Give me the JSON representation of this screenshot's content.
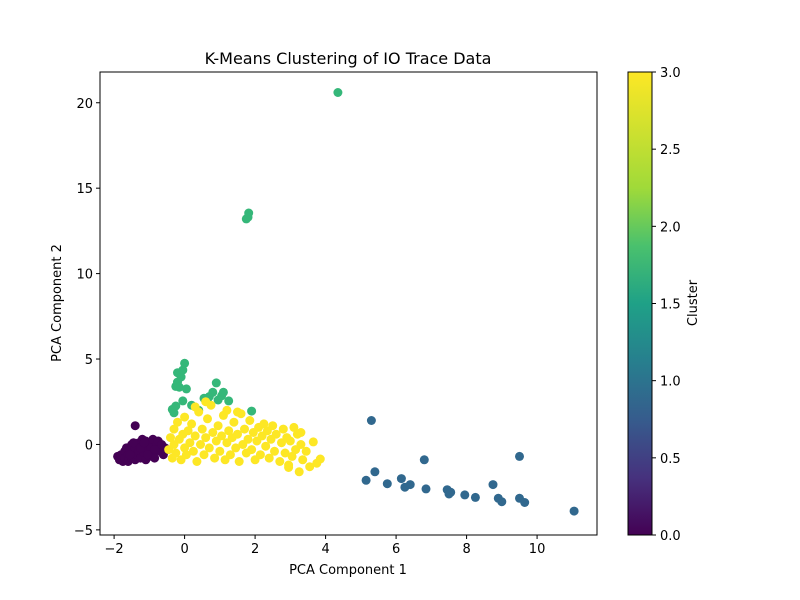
{
  "chart_data": {
    "type": "scatter",
    "title": "K-Means Clustering of IO Trace Data",
    "xlabel": "PCA Component 1",
    "ylabel": "PCA Component 2",
    "xlim": [
      -2.4,
      11.7
    ],
    "ylim": [
      -5.3,
      21.8
    ],
    "xticks": [
      -2,
      0,
      2,
      4,
      6,
      8,
      10
    ],
    "yticks": [
      -5,
      0,
      5,
      10,
      15,
      20
    ],
    "grid": false,
    "colorbar": {
      "label": "Cluster",
      "range": [
        0.0,
        3.0
      ],
      "ticks": [
        "0.0",
        "0.5",
        "1.0",
        "1.5",
        "2.0",
        "2.5",
        "3.0"
      ],
      "colormap": [
        "#440154",
        "#3b528b",
        "#21918c",
        "#5ec962",
        "#fde725"
      ]
    },
    "series": [
      {
        "cluster": 0,
        "color": "#440154",
        "points": [
          [
            -1.9,
            -0.7
          ],
          [
            -1.85,
            -0.9
          ],
          [
            -1.8,
            -0.6
          ],
          [
            -1.75,
            -1.0
          ],
          [
            -1.7,
            -0.4
          ],
          [
            -1.7,
            -0.8
          ],
          [
            -1.65,
            -0.2
          ],
          [
            -1.6,
            -0.6
          ],
          [
            -1.6,
            -1.0
          ],
          [
            -1.55,
            -0.3
          ],
          [
            -1.5,
            0.0
          ],
          [
            -1.5,
            -0.8
          ],
          [
            -1.45,
            -0.5
          ],
          [
            -1.4,
            1.1
          ],
          [
            -1.4,
            -0.2
          ],
          [
            -1.4,
            -0.9
          ],
          [
            -1.35,
            -0.6
          ],
          [
            -1.3,
            0.1
          ],
          [
            -1.3,
            -0.4
          ],
          [
            -1.25,
            -0.8
          ],
          [
            -1.2,
            -0.1
          ],
          [
            -1.2,
            0.3
          ],
          [
            -1.15,
            -0.5
          ],
          [
            -1.1,
            -0.9
          ],
          [
            -1.1,
            0.2
          ],
          [
            -1.05,
            -0.3
          ],
          [
            -1.0,
            0.0
          ],
          [
            -1.0,
            -0.7
          ],
          [
            -0.95,
            -0.2
          ],
          [
            -0.9,
            0.3
          ],
          [
            -0.9,
            -0.5
          ],
          [
            -0.85,
            -0.8
          ],
          [
            -0.8,
            -0.1
          ],
          [
            -0.75,
            0.2
          ],
          [
            -0.7,
            -0.4
          ],
          [
            -0.65,
            0.0
          ],
          [
            -0.6,
            -0.6
          ],
          [
            -0.55,
            -0.2
          ],
          [
            -0.5,
            -0.3
          ],
          [
            -1.55,
            -0.6
          ],
          [
            -1.25,
            -0.2
          ],
          [
            -1.05,
            -0.6
          ],
          [
            -0.85,
            -0.3
          ],
          [
            -1.45,
            0.1
          ],
          [
            -1.15,
            0.1
          ]
        ]
      },
      {
        "cluster": 1,
        "color": "#31688e",
        "points": [
          [
            5.3,
            1.4
          ],
          [
            5.15,
            -2.1
          ],
          [
            5.4,
            -1.6
          ],
          [
            5.75,
            -2.3
          ],
          [
            6.15,
            -2.0
          ],
          [
            6.25,
            -2.5
          ],
          [
            6.4,
            -2.35
          ],
          [
            6.8,
            -0.9
          ],
          [
            6.85,
            -2.6
          ],
          [
            7.45,
            -2.65
          ],
          [
            7.5,
            -2.9
          ],
          [
            7.55,
            -2.8
          ],
          [
            7.95,
            -2.95
          ],
          [
            8.25,
            -3.1
          ],
          [
            8.75,
            -2.35
          ],
          [
            8.9,
            -3.15
          ],
          [
            9.0,
            -3.35
          ],
          [
            9.5,
            -0.7
          ],
          [
            9.5,
            -3.15
          ],
          [
            9.65,
            -3.4
          ],
          [
            11.05,
            -3.9
          ]
        ]
      },
      {
        "cluster": 2,
        "color": "#35b779",
        "points": [
          [
            -0.35,
            2.05
          ],
          [
            -0.3,
            1.85
          ],
          [
            -0.25,
            2.25
          ],
          [
            -0.25,
            3.4
          ],
          [
            -0.2,
            3.65
          ],
          [
            -0.2,
            4.2
          ],
          [
            -0.15,
            3.35
          ],
          [
            -0.1,
            3.95
          ],
          [
            -0.05,
            4.35
          ],
          [
            0.0,
            4.75
          ],
          [
            -0.05,
            2.55
          ],
          [
            0.05,
            3.25
          ],
          [
            0.2,
            2.3
          ],
          [
            0.4,
            2.0
          ],
          [
            0.55,
            2.7
          ],
          [
            0.65,
            2.5
          ],
          [
            0.7,
            2.8
          ],
          [
            0.8,
            3.05
          ],
          [
            0.9,
            3.6
          ],
          [
            0.95,
            2.6
          ],
          [
            1.05,
            2.85
          ],
          [
            1.1,
            3.05
          ],
          [
            1.25,
            2.55
          ],
          [
            1.75,
            13.2
          ],
          [
            1.82,
            13.55
          ],
          [
            1.8,
            13.3
          ],
          [
            1.9,
            1.95
          ],
          [
            4.35,
            20.6
          ]
        ]
      },
      {
        "cluster": 3,
        "color": "#fde725",
        "points": [
          [
            -0.45,
            -0.3
          ],
          [
            -0.4,
            0.4
          ],
          [
            -0.35,
            -0.8
          ],
          [
            -0.3,
            0.9
          ],
          [
            -0.3,
            0.0
          ],
          [
            -0.25,
            -0.5
          ],
          [
            -0.2,
            1.3
          ],
          [
            -0.15,
            0.3
          ],
          [
            -0.1,
            -0.9
          ],
          [
            -0.05,
            0.6
          ],
          [
            0.0,
            -0.2
          ],
          [
            0.0,
            1.6
          ],
          [
            0.05,
            -0.6
          ],
          [
            0.1,
            0.8
          ],
          [
            0.15,
            0.1
          ],
          [
            0.2,
            1.2
          ],
          [
            0.25,
            -0.4
          ],
          [
            0.3,
            0.5
          ],
          [
            0.35,
            -1.0
          ],
          [
            0.4,
            1.9
          ],
          [
            0.45,
            0.0
          ],
          [
            0.5,
            0.9
          ],
          [
            0.55,
            -0.6
          ],
          [
            0.6,
            0.4
          ],
          [
            0.65,
            1.5
          ],
          [
            0.7,
            -0.2
          ],
          [
            0.75,
            2.3
          ],
          [
            0.8,
            0.7
          ],
          [
            0.85,
            -0.8
          ],
          [
            0.9,
            0.2
          ],
          [
            0.95,
            1.1
          ],
          [
            1.0,
            -0.4
          ],
          [
            1.05,
            0.5
          ],
          [
            1.1,
            1.7
          ],
          [
            1.15,
            -0.9
          ],
          [
            1.2,
            0.1
          ],
          [
            1.25,
            0.8
          ],
          [
            1.3,
            -0.6
          ],
          [
            1.35,
            0.4
          ],
          [
            1.4,
            1.3
          ],
          [
            1.45,
            -0.2
          ],
          [
            1.5,
            0.6
          ],
          [
            1.55,
            -1.0
          ],
          [
            1.6,
            1.8
          ],
          [
            1.65,
            0.0
          ],
          [
            1.7,
            0.9
          ],
          [
            1.75,
            -0.5
          ],
          [
            1.8,
            0.3
          ],
          [
            1.85,
            1.4
          ],
          [
            1.9,
            -0.3
          ],
          [
            1.95,
            0.7
          ],
          [
            2.0,
            -0.9
          ],
          [
            2.05,
            0.2
          ],
          [
            2.1,
            1.0
          ],
          [
            2.15,
            -0.6
          ],
          [
            2.2,
            0.5
          ],
          [
            2.25,
            1.2
          ],
          [
            2.3,
            -0.1
          ],
          [
            2.35,
            0.8
          ],
          [
            2.4,
            -0.8
          ],
          [
            2.45,
            0.3
          ],
          [
            2.5,
            1.1
          ],
          [
            2.55,
            -0.4
          ],
          [
            2.6,
            0.6
          ],
          [
            2.7,
            -1.0
          ],
          [
            2.75,
            0.1
          ],
          [
            2.8,
            0.9
          ],
          [
            2.85,
            -0.5
          ],
          [
            2.9,
            0.4
          ],
          [
            2.95,
            -1.2
          ],
          [
            3.0,
            0.2
          ],
          [
            3.05,
            -0.7
          ],
          [
            3.1,
            1.0
          ],
          [
            3.15,
            -0.3
          ],
          [
            3.2,
            0.6
          ],
          [
            3.25,
            -1.6
          ],
          [
            3.3,
            0.0
          ],
          [
            3.35,
            -0.9
          ],
          [
            3.45,
            -0.4
          ],
          [
            3.55,
            -1.3
          ],
          [
            3.65,
            0.15
          ],
          [
            3.75,
            -1.1
          ],
          [
            3.85,
            -0.85
          ],
          [
            0.6,
            2.5
          ],
          [
            0.3,
            2.2
          ],
          [
            1.5,
            1.9
          ],
          [
            1.2,
            2.0
          ],
          [
            3.3,
            0.7
          ],
          [
            2.95,
            -1.35
          ]
        ]
      }
    ]
  }
}
